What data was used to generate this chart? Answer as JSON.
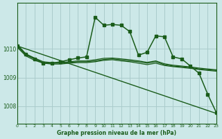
{
  "background_color": "#cce8e8",
  "grid_color": "#aacccc",
  "line_color": "#1a5c1a",
  "xlabel": "Graphe pression niveau de la mer (hPa)",
  "xlim": [
    0,
    23
  ],
  "ylim": [
    1007.4,
    1011.6
  ],
  "yticks": [
    1008,
    1009,
    1010
  ],
  "xticks": [
    0,
    1,
    2,
    3,
    4,
    5,
    6,
    7,
    8,
    9,
    10,
    11,
    12,
    13,
    14,
    15,
    16,
    17,
    18,
    19,
    20,
    21,
    22,
    23
  ],
  "series": [
    {
      "x": [
        0,
        23
      ],
      "y": [
        1010.1,
        1007.75
      ],
      "marker": null,
      "linewidth": 1.0
    },
    {
      "x": [
        0,
        1,
        2,
        3,
        4,
        5,
        6,
        7,
        8,
        9,
        10,
        11,
        12,
        13,
        14,
        15,
        16,
        17,
        18,
        19,
        20,
        21,
        22,
        23
      ],
      "y": [
        1010.05,
        1009.75,
        1009.6,
        1009.5,
        1009.47,
        1009.47,
        1009.5,
        1009.52,
        1009.52,
        1009.55,
        1009.6,
        1009.62,
        1009.58,
        1009.55,
        1009.5,
        1009.45,
        1009.5,
        1009.42,
        1009.38,
        1009.35,
        1009.32,
        1009.28,
        1009.25,
        1009.22
      ],
      "marker": null,
      "linewidth": 0.9
    },
    {
      "x": [
        0,
        1,
        2,
        3,
        4,
        5,
        6,
        7,
        8,
        9,
        10,
        11,
        12,
        13,
        14,
        15,
        16,
        17,
        18,
        19,
        20,
        21,
        22,
        23
      ],
      "y": [
        1010.1,
        1009.78,
        1009.65,
        1009.52,
        1009.5,
        1009.5,
        1009.53,
        1009.55,
        1009.55,
        1009.58,
        1009.63,
        1009.65,
        1009.62,
        1009.58,
        1009.55,
        1009.5,
        1009.55,
        1009.45,
        1009.4,
        1009.38,
        1009.35,
        1009.3,
        1009.27,
        1009.25
      ],
      "marker": null,
      "linewidth": 0.9
    },
    {
      "x": [
        0,
        1,
        2,
        3,
        4,
        5,
        6,
        7,
        8,
        9,
        10,
        11,
        12,
        13,
        14,
        15,
        16,
        17,
        18,
        19,
        20,
        21,
        22,
        23
      ],
      "y": [
        1010.15,
        1009.82,
        1009.68,
        1009.55,
        1009.52,
        1009.52,
        1009.55,
        1009.58,
        1009.58,
        1009.62,
        1009.67,
        1009.68,
        1009.65,
        1009.62,
        1009.58,
        1009.53,
        1009.58,
        1009.48,
        1009.43,
        1009.4,
        1009.37,
        1009.33,
        1009.3,
        1009.27
      ],
      "marker": null,
      "linewidth": 0.9
    },
    {
      "x": [
        0,
        1,
        2,
        3,
        4,
        5,
        6,
        7,
        8,
        9,
        10,
        11,
        12,
        13,
        14,
        15,
        16,
        17,
        18,
        19,
        20,
        21,
        22,
        23
      ],
      "y": [
        1010.1,
        1009.82,
        1009.65,
        1009.5,
        1009.5,
        1009.55,
        1009.62,
        1009.68,
        1009.72,
        1011.1,
        1010.82,
        1010.85,
        1010.82,
        1010.6,
        1009.78,
        1009.88,
        1010.45,
        1010.42,
        1009.72,
        1009.65,
        1009.4,
        1009.15,
        1008.42,
        1007.78
      ],
      "marker": "s",
      "markersize": 2.5,
      "linewidth": 1.1
    }
  ]
}
